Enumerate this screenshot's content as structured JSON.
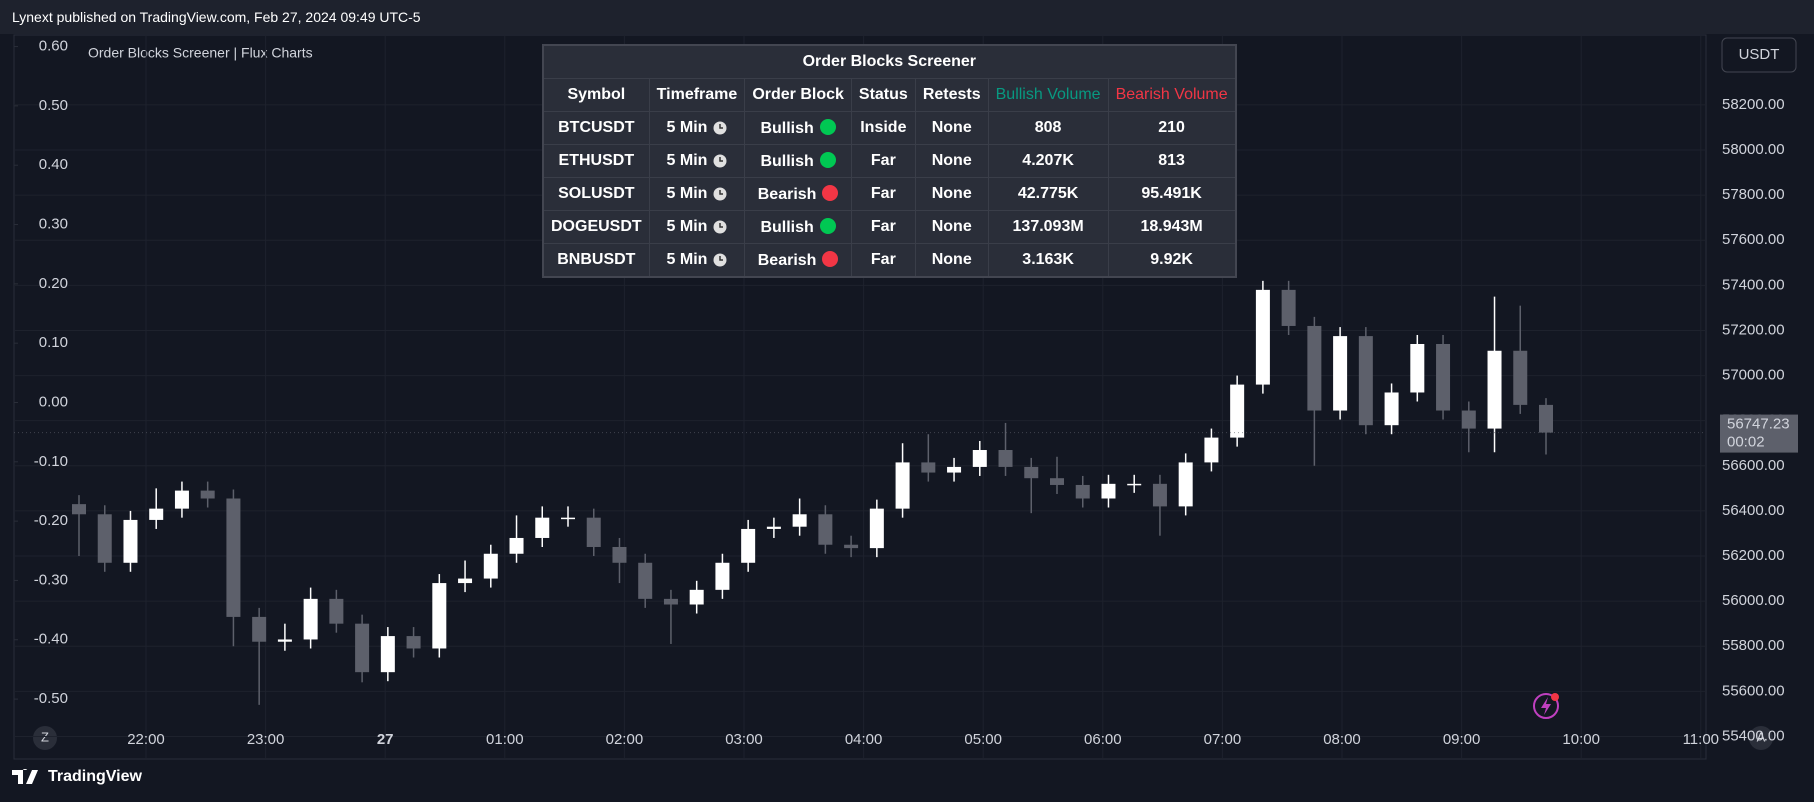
{
  "header": {
    "text": "Lynext published on TradingView.com, Feb 27, 2024 09:49 UTC-5"
  },
  "footer": {
    "brand": "TradingView"
  },
  "chart_data": {
    "type": "candlestick",
    "indicator": "Order Blocks Screener | Flux Charts",
    "currency": "USDT",
    "countdown": "00:02",
    "scale_buttons": [
      "Z",
      "A"
    ],
    "up_color": "#ffffff",
    "down_color": "#5d606b",
    "open": [
      56430,
      56385,
      56170,
      56360,
      56410,
      56490,
      56455,
      55930,
      55820,
      55830,
      56010,
      55900,
      55685,
      55845,
      55790,
      56080,
      56100,
      56210,
      56280,
      56370,
      56370,
      56240,
      56170,
      56010,
      55985,
      56050,
      56170,
      56320,
      56330,
      56385,
      56250,
      56235,
      56410,
      56615,
      56570,
      56595,
      56670,
      56595,
      56545,
      56515,
      56455,
      56520,
      56520,
      56420,
      56615,
      56725,
      56960,
      57380,
      57220,
      56845,
      57175,
      56780,
      56925,
      57140,
      56845,
      56765,
      57110,
      56870
    ],
    "high": [
      56470,
      56425,
      56400,
      56500,
      56530,
      56530,
      56495,
      55970,
      55900,
      56060,
      56050,
      55940,
      55885,
      55885,
      56120,
      56180,
      56250,
      56380,
      56420,
      56420,
      56410,
      56280,
      56210,
      56050,
      56090,
      56210,
      56360,
      56370,
      56455,
      56425,
      56290,
      56450,
      56700,
      56740,
      56635,
      56710,
      56790,
      56635,
      56640,
      56555,
      56560,
      56560,
      56560,
      56655,
      56765,
      57000,
      57420,
      57420,
      57260,
      57215,
      57215,
      56965,
      57180,
      57180,
      56885,
      57350,
      57310,
      56900
    ],
    "low": [
      56200,
      56130,
      56130,
      56320,
      56370,
      56415,
      55800,
      55540,
      55780,
      55790,
      55860,
      55640,
      55645,
      55750,
      55750,
      56040,
      56060,
      56170,
      56240,
      56330,
      56200,
      56080,
      55970,
      55810,
      55945,
      56010,
      56130,
      56280,
      56290,
      56210,
      56195,
      56195,
      56370,
      56530,
      56530,
      56555,
      56555,
      56390,
      56475,
      56415,
      56415,
      56480,
      56290,
      56380,
      56575,
      56685,
      56920,
      57180,
      56600,
      56805,
      56740,
      56740,
      56885,
      56805,
      56660,
      56660,
      56830,
      56650
    ],
    "close": [
      56385,
      56170,
      56360,
      56410,
      56490,
      56455,
      55930,
      55820,
      55830,
      56010,
      55900,
      55685,
      55845,
      55790,
      56080,
      56100,
      56210,
      56280,
      56370,
      56370,
      56240,
      56170,
      56010,
      55985,
      56050,
      56170,
      56320,
      56330,
      56385,
      56250,
      56235,
      56410,
      56615,
      56570,
      56595,
      56670,
      56595,
      56545,
      56515,
      56455,
      56520,
      56520,
      56420,
      56615,
      56725,
      56960,
      57380,
      57220,
      56845,
      57175,
      56780,
      56925,
      57140,
      56845,
      56765,
      57110,
      56870,
      56747.23
    ],
    "time_labels": [
      "22:00",
      "23:00",
      "27",
      "01:00",
      "02:00",
      "03:00",
      "04:00",
      "05:00",
      "06:00",
      "07:00",
      "08:00",
      "09:00",
      "10:00",
      "11:00"
    ],
    "ylim": [
      55300,
      58510
    ],
    "yticks": [
      {
        "value": 58200,
        "label": "58200.00"
      },
      {
        "value": 58000,
        "label": "58000.00"
      },
      {
        "value": 57800,
        "label": "57800.00"
      },
      {
        "value": 57600,
        "label": "57600.00"
      },
      {
        "value": 57400,
        "label": "57400.00"
      },
      {
        "value": 57200,
        "label": "57200.00"
      },
      {
        "value": 57000,
        "label": "57000.00"
      },
      {
        "value": 56800,
        "label": "56800.00"
      },
      {
        "value": 56600,
        "label": "56600.00"
      },
      {
        "value": 56400,
        "label": "56400.00"
      },
      {
        "value": 56200,
        "label": "56200.00"
      },
      {
        "value": 56000,
        "label": "56000.00"
      },
      {
        "value": 55800,
        "label": "55800.00"
      },
      {
        "value": 55600,
        "label": "55600.00"
      },
      {
        "value": 55400,
        "label": "55400.00"
      }
    ],
    "y2lim": [
      -0.601,
      0.6195
    ],
    "y2ticks": [
      {
        "value": 0.6,
        "label": "0.60"
      },
      {
        "value": 0.5,
        "label": "0.50"
      },
      {
        "value": 0.4,
        "label": "0.40"
      },
      {
        "value": 0.3,
        "label": "0.30"
      },
      {
        "value": 0.2,
        "label": "0.20"
      },
      {
        "value": 0.1,
        "label": "0.10"
      },
      {
        "value": 0,
        "label": "0.00"
      },
      {
        "value": -0.1,
        "label": "-0.10"
      },
      {
        "value": -0.2,
        "label": "-0.20"
      },
      {
        "value": -0.3,
        "label": "-0.30"
      },
      {
        "value": -0.4,
        "label": "-0.40"
      },
      {
        "value": -0.5,
        "label": "-0.50"
      }
    ],
    "grid": true
  },
  "table": {
    "title": "Order Blocks Screener",
    "headers": [
      "Symbol",
      "Timeframe",
      "Order Block",
      "Status",
      "Retests",
      "Bullish Volume",
      "Bearish Volume"
    ],
    "header_colors": [
      null,
      null,
      null,
      null,
      null,
      "#089981",
      "#f23645"
    ],
    "rows": [
      [
        "BTCUSDT",
        "5 Min",
        "Bullish",
        "Inside",
        "None",
        "808",
        "210"
      ],
      [
        "ETHUSDT",
        "5 Min",
        "Bullish",
        "Far",
        "None",
        "4.207K",
        "813"
      ],
      [
        "SOLUSDT",
        "5 Min",
        "Bearish",
        "Far",
        "None",
        "42.775K",
        "95.491K"
      ],
      [
        "DOGEUSDT",
        "5 Min",
        "Bullish",
        "Far",
        "None",
        "137.093M",
        "18.943M"
      ],
      [
        "BNBUSDT",
        "5 Min",
        "Bearish",
        "Far",
        "None",
        "3.163K",
        "9.92K"
      ]
    ],
    "dot_colors": {
      "Bullish": "#00c853",
      "Bearish": "#f23645"
    }
  }
}
